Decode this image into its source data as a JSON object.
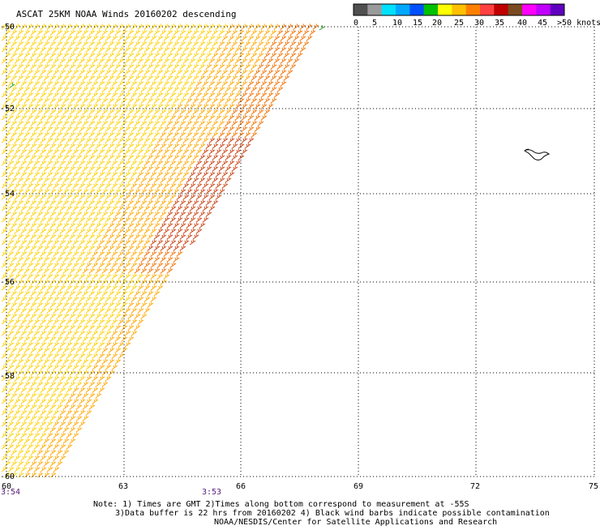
{
  "title": "ASCAT 25KM NOAA Winds 20160202 descending",
  "colorbar": {
    "labels": [
      "0",
      "5",
      "10",
      "15",
      "20",
      "25",
      "30",
      "35",
      "40",
      "45",
      ">50 knots"
    ],
    "colors": [
      "#505050",
      "#9a9a9a",
      "#00e0ff",
      "#00a8ff",
      "#0050ff",
      "#00c000",
      "#ffff00",
      "#ffc000",
      "#ff8000",
      "#ff4040",
      "#c00000",
      "#7a4a20",
      "#ff00ff",
      "#c000ff",
      "#6000c0"
    ]
  },
  "axes": {
    "lat_labels": [
      "-50",
      "-52",
      "-54",
      "-56",
      "-58",
      "-60"
    ],
    "lon_labels": [
      "60",
      "63",
      "66",
      "69",
      "72",
      "75"
    ]
  },
  "times": {
    "left": "3:54",
    "middle": "3:53"
  },
  "notes": {
    "line1": "Note: 1) Times are GMT 2)Times along bottom correspond to measurement at -55S",
    "line2": "3)Data buffer is 22 hrs from 20160202 4) Black wind barbs indicate possible contamination",
    "line3": "NOAA/NESDIS/Center for Satellite Applications and Research"
  },
  "wind_field": {
    "swath": "western half, diagonal east edge",
    "speed_knots_range": [
      20,
      35
    ],
    "barb_colors": {
      "light": "#ffd000",
      "mid": "#ffa800",
      "strong": "#f07000",
      "max": "#c84010"
    }
  }
}
